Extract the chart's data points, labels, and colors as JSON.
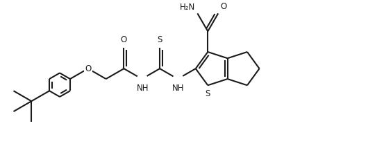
{
  "background_color": "#ffffff",
  "line_color": "#1a1a1a",
  "line_width": 1.5,
  "font_size": 8.5,
  "figsize": [
    5.3,
    2.37
  ],
  "dpi": 100,
  "xlim": [
    0,
    53
  ],
  "ylim": [
    0,
    23.7
  ]
}
